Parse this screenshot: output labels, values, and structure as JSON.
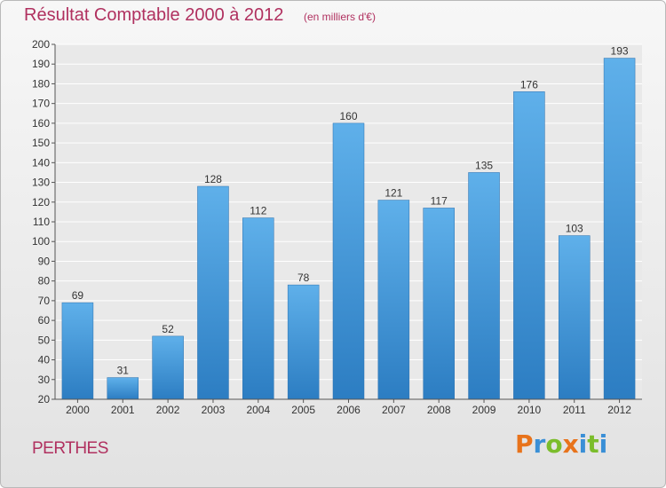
{
  "chart_data": {
    "type": "bar",
    "title": "Résultat Comptable 2000 à 2012",
    "subtitle": "(en milliers d'€)",
    "categories": [
      "2000",
      "2001",
      "2002",
      "2003",
      "2004",
      "2005",
      "2006",
      "2007",
      "2008",
      "2009",
      "2010",
      "2011",
      "2012"
    ],
    "values": [
      69,
      31,
      52,
      128,
      112,
      78,
      160,
      121,
      117,
      135,
      176,
      103,
      193
    ],
    "ylim": [
      20,
      200
    ],
    "yticks": [
      20,
      30,
      40,
      50,
      60,
      70,
      80,
      90,
      100,
      110,
      120,
      130,
      140,
      150,
      160,
      170,
      180,
      190,
      200
    ],
    "grid": true,
    "bar_color": "#3d8fd6",
    "xlabel": "",
    "ylabel": ""
  },
  "commune": "PERTHES",
  "logo": {
    "letters": [
      "P",
      "r",
      "o",
      "x",
      "i",
      "t",
      "i"
    ],
    "colors": [
      "#e8731b",
      "#3a8fd6",
      "#7bbd2c",
      "#e8731b",
      "#3a8fd6",
      "#7bbd2c",
      "#3a8fd6"
    ]
  }
}
